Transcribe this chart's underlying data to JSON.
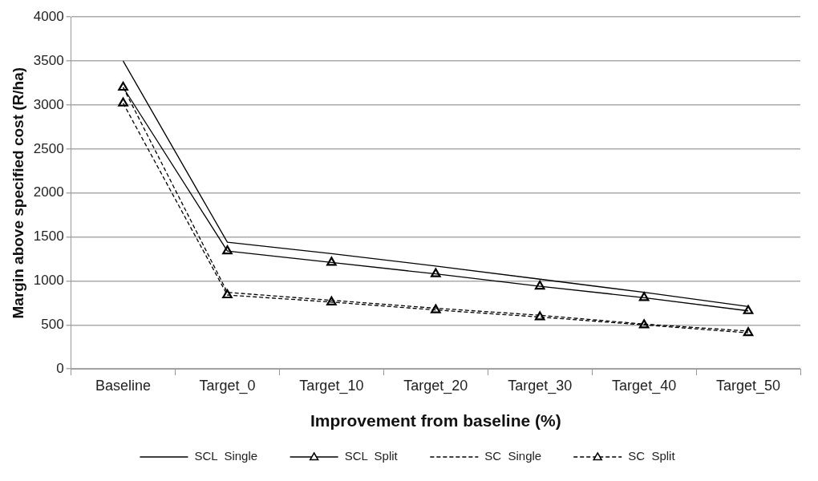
{
  "chart_data": {
    "type": "line",
    "xlabel": "Improvement from baseline (%)",
    "ylabel": "Margin above specified cost (R/ha)",
    "categories": [
      "Baseline",
      "Target_0",
      "Target_10",
      "Target_20",
      "Target_30",
      "Target_40",
      "Target_50"
    ],
    "series": [
      {
        "name": "SCL  Single",
        "color": "#000000",
        "marker": "none",
        "line_style": "solid",
        "values": [
          3500,
          1440,
          1310,
          1170,
          1020,
          870,
          710
        ]
      },
      {
        "name": "SCL  Split",
        "color": "#000000",
        "marker": "triangle",
        "line_style": "solid",
        "values": [
          3200,
          1340,
          1210,
          1080,
          940,
          810,
          660
        ]
      },
      {
        "name": "SC  Single",
        "color": "#000000",
        "marker": "none",
        "line_style": "dashed",
        "values": [
          3200,
          870,
          780,
          690,
          610,
          510,
          430
        ]
      },
      {
        "name": "SC  Split",
        "color": "#000000",
        "marker": "triangle",
        "line_style": "dashed",
        "values": [
          3020,
          840,
          760,
          670,
          590,
          500,
          410
        ]
      }
    ],
    "ylim": [
      0,
      4000
    ],
    "yticks": [
      0,
      500,
      {
        "value": 1000,
        "label": "1000"
      },
      {
        "value": 1500,
        "label": "1500"
      },
      {
        "value": 2000,
        "label": "2000"
      },
      {
        "value": 2500,
        "label": "2500"
      },
      {
        "value": 3000,
        "label": "3000"
      },
      {
        "value": 3500,
        "label": "3500"
      },
      {
        "value": 4000,
        "label": "4000"
      }
    ],
    "grid": "y",
    "legend": "bottom"
  }
}
